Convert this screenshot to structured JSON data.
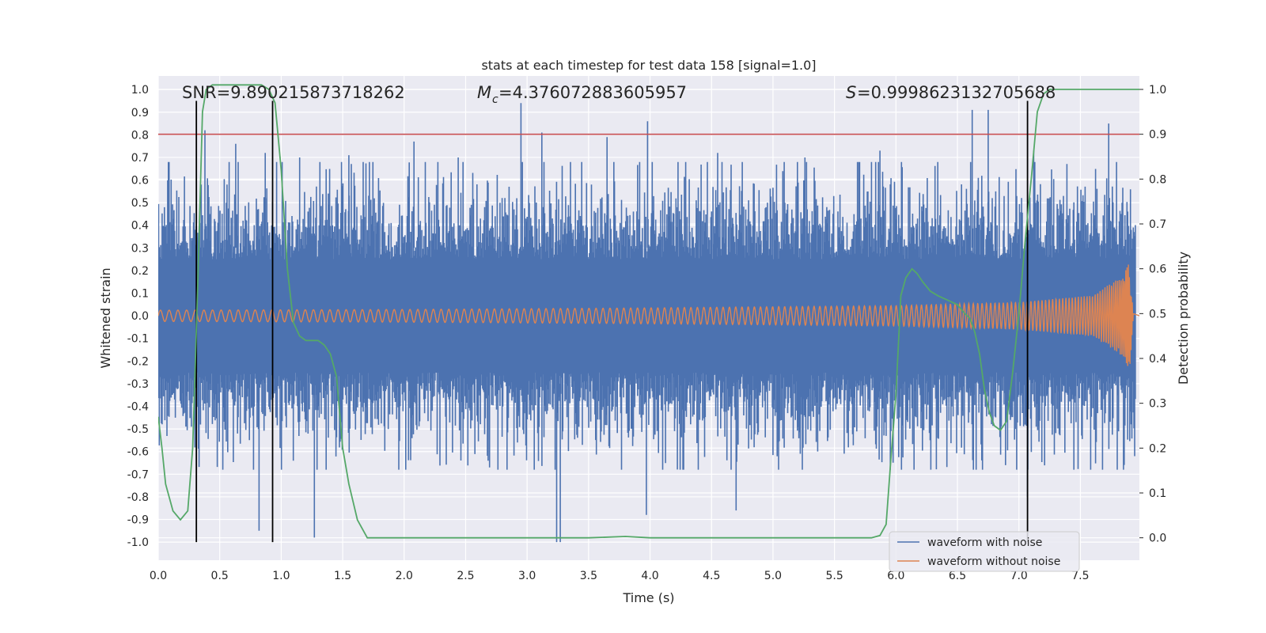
{
  "chart_data": {
    "type": "line",
    "title": "stats at each timestep for test data 158 [signal=1.0]",
    "xlabel": "Time (s)",
    "ylabel_left": "Whitened strain",
    "ylabel_right": "Detection probability",
    "xlim": [
      0.0,
      7.98
    ],
    "ylim_left": [
      -1.08,
      1.06
    ],
    "ylim_right": [
      -0.05,
      1.03
    ],
    "x_ticks": [
      "0.0",
      "0.5",
      "1.0",
      "1.5",
      "2.0",
      "2.5",
      "3.0",
      "3.5",
      "4.0",
      "4.5",
      "5.0",
      "5.5",
      "6.0",
      "6.5",
      "7.0",
      "7.5"
    ],
    "y_ticks_left": [
      "1.0",
      "0.9",
      "0.8",
      "0.7",
      "0.6",
      "0.5",
      "0.4",
      "0.3",
      "0.2",
      "0.1",
      "0.0",
      "-0.1",
      "-0.2",
      "-0.3",
      "-0.4",
      "-0.5",
      "-0.6",
      "-0.7",
      "-0.8",
      "-0.9",
      "-1.0"
    ],
    "y_ticks_right": [
      "1.0",
      "0.9",
      "0.8",
      "0.7",
      "0.6",
      "0.5",
      "0.4",
      "0.3",
      "0.2",
      "0.1",
      "0.0"
    ],
    "grid": true,
    "legend_position": "lower-right",
    "annotations": {
      "snr": "SNR=9.890215873718262",
      "mc": "=4.376072883605957",
      "s": "=0.9998623132705688"
    },
    "threshold": {
      "axis": "right",
      "value": 0.9,
      "color": "#c44e52"
    },
    "vertical_lines": [
      0.31,
      0.93,
      7.07
    ],
    "series": [
      {
        "name": "waveform with noise",
        "axis": "left",
        "color": "#4c72b0",
        "note_spikes": [
          {
            "x": 0.05,
            "y": 0.48
          },
          {
            "x": 0.38,
            "y": 0.82
          },
          {
            "x": 0.63,
            "y": 0.76
          },
          {
            "x": 0.87,
            "y": 0.72
          },
          {
            "x": 1.15,
            "y": 0.7
          },
          {
            "x": 1.55,
            "y": 0.71
          },
          {
            "x": 2.08,
            "y": 0.77
          },
          {
            "x": 2.44,
            "y": 0.7
          },
          {
            "x": 2.95,
            "y": 0.94
          },
          {
            "x": 3.12,
            "y": 0.81
          },
          {
            "x": 3.65,
            "y": 0.79
          },
          {
            "x": 3.98,
            "y": 0.86
          },
          {
            "x": 4.55,
            "y": 0.72
          },
          {
            "x": 5.26,
            "y": 0.7
          },
          {
            "x": 5.87,
            "y": 0.73
          },
          {
            "x": 6.62,
            "y": 0.91
          },
          {
            "x": 6.75,
            "y": 0.91
          },
          {
            "x": 7.12,
            "y": 0.73
          },
          {
            "x": 7.73,
            "y": 0.85
          },
          {
            "x": 0.82,
            "y": -0.95
          },
          {
            "x": 1.27,
            "y": -0.98
          },
          {
            "x": 3.24,
            "y": -1.0
          },
          {
            "x": 3.27,
            "y": -1.0
          },
          {
            "x": 3.97,
            "y": -0.88
          },
          {
            "x": 4.7,
            "y": -0.86
          },
          {
            "x": 7.07,
            "y": -0.8
          }
        ]
      },
      {
        "name": "waveform without noise",
        "axis": "left",
        "color": "#dd8452",
        "envelope": [
          {
            "x": 0.0,
            "y": 0.025
          },
          {
            "x": 2.0,
            "y": 0.028
          },
          {
            "x": 4.0,
            "y": 0.035
          },
          {
            "x": 6.0,
            "y": 0.045
          },
          {
            "x": 7.0,
            "y": 0.06
          },
          {
            "x": 7.6,
            "y": 0.09
          },
          {
            "x": 7.85,
            "y": 0.18
          },
          {
            "x": 7.9,
            "y": 0.24
          },
          {
            "x": 7.93,
            "y": 0.01
          },
          {
            "x": 7.98,
            "y": 0.01
          }
        ]
      },
      {
        "name": "detection probability",
        "axis": "right",
        "color": "#55a868",
        "x": [
          0.0,
          0.03,
          0.06,
          0.12,
          0.18,
          0.24,
          0.28,
          0.32,
          0.36,
          0.39,
          0.44,
          0.52,
          0.6,
          0.68,
          0.76,
          0.84,
          0.9,
          0.95,
          1.0,
          1.05,
          1.1,
          1.15,
          1.2,
          1.25,
          1.3,
          1.35,
          1.4,
          1.45,
          1.5,
          1.55,
          1.62,
          1.7,
          2.0,
          2.5,
          3.0,
          3.3,
          3.5,
          3.8,
          4.0,
          4.5,
          5.0,
          5.5,
          5.8,
          5.87,
          5.92,
          5.96,
          6.0,
          6.04,
          6.08,
          6.13,
          6.17,
          6.22,
          6.28,
          6.34,
          6.42,
          6.5,
          6.56,
          6.6,
          6.64,
          6.68,
          6.72,
          6.76,
          6.8,
          6.85,
          6.9,
          6.95,
          7.0,
          7.05,
          7.1,
          7.15,
          7.2,
          7.25,
          7.3,
          7.5,
          7.7,
          7.98
        ],
        "y": [
          0.27,
          0.2,
          0.12,
          0.06,
          0.04,
          0.06,
          0.2,
          0.55,
          0.95,
          1.0,
          1.01,
          1.01,
          1.01,
          1.01,
          1.01,
          1.01,
          1.0,
          0.97,
          0.82,
          0.6,
          0.48,
          0.45,
          0.44,
          0.44,
          0.44,
          0.43,
          0.41,
          0.36,
          0.2,
          0.12,
          0.04,
          0.0,
          0.0,
          0.0,
          0.0,
          0.0,
          0.0,
          0.003,
          0.0,
          0.0,
          0.0,
          0.0,
          0.0,
          0.005,
          0.03,
          0.18,
          0.32,
          0.54,
          0.58,
          0.6,
          0.59,
          0.57,
          0.55,
          0.54,
          0.53,
          0.52,
          0.5,
          0.49,
          0.46,
          0.41,
          0.33,
          0.28,
          0.25,
          0.24,
          0.26,
          0.37,
          0.5,
          0.66,
          0.8,
          0.95,
          0.99,
          1.0,
          1.0,
          1.0,
          1.0,
          1.0
        ]
      }
    ]
  },
  "legend": {
    "items": [
      {
        "label": "waveform with noise",
        "color": "#4c72b0"
      },
      {
        "label": "waveform without noise",
        "color": "#dd8452"
      }
    ]
  }
}
